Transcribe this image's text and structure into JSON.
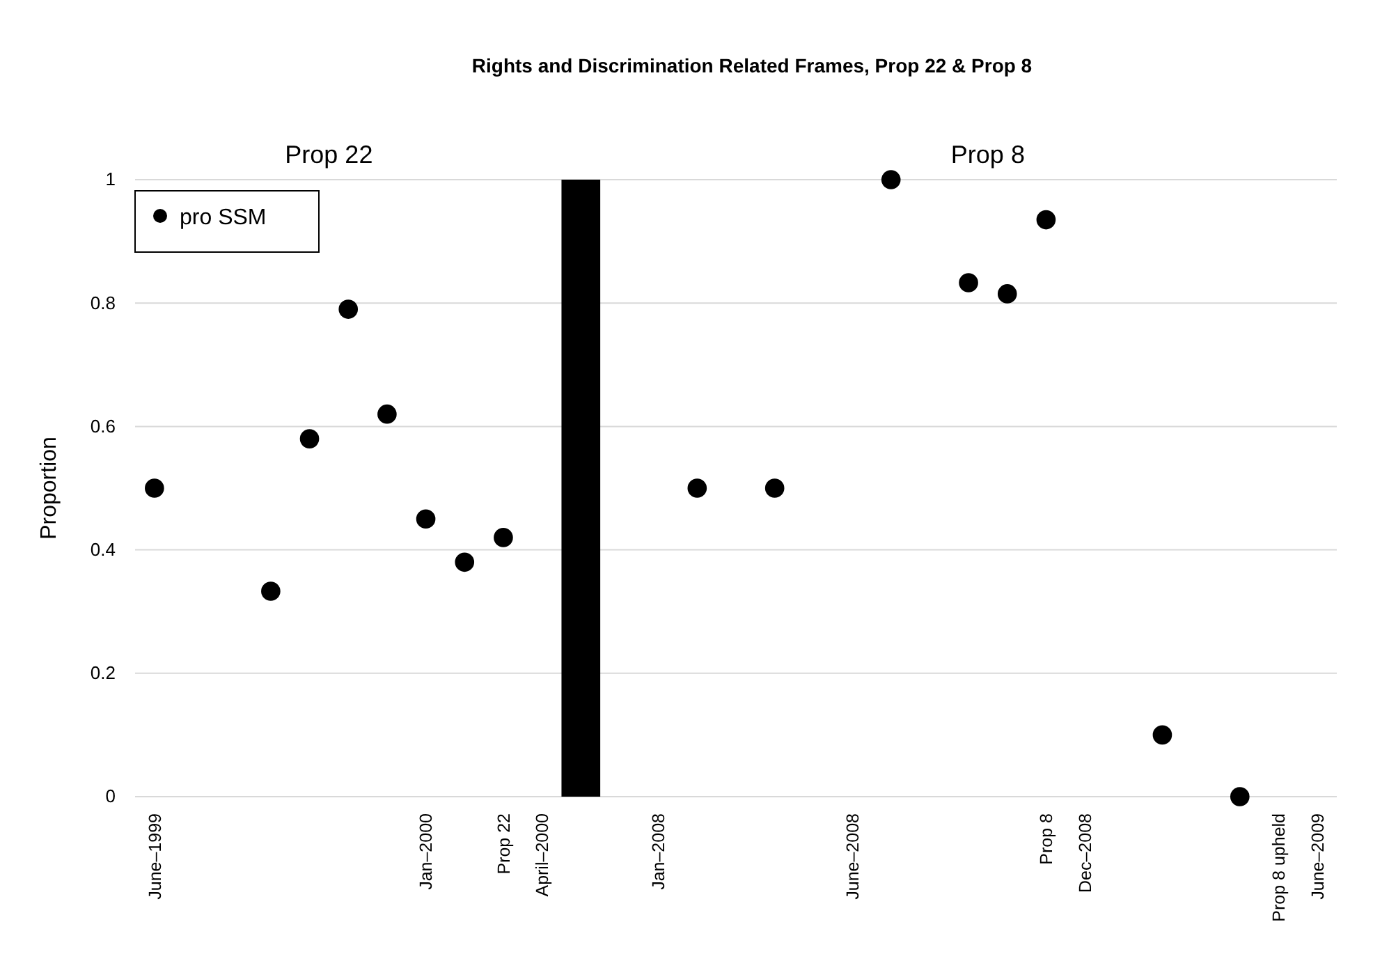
{
  "chart_data": {
    "type": "scatter",
    "title": "Rights and Discrimination Related Frames, Prop 22 & Prop 8",
    "ylabel": "Proportion",
    "annotations": [
      "Prop 22",
      "Prop 8"
    ],
    "categories": [
      "June–1999",
      null,
      null,
      null,
      null,
      null,
      null,
      "Jan–2000",
      null,
      "Prop 22",
      "April–2000",
      null,
      null,
      "Jan–2008",
      null,
      null,
      null,
      null,
      "June–2008",
      null,
      null,
      null,
      null,
      "Prop 8",
      "Dec–2008",
      null,
      null,
      null,
      null,
      "Prop 8 upheld",
      "June–2009"
    ],
    "series": [
      {
        "type": "bar",
        "color": "#000000",
        "values": [
          null,
          null,
          null,
          null,
          null,
          null,
          null,
          null,
          null,
          null,
          null,
          1,
          null,
          null,
          null,
          null,
          null,
          null,
          null,
          null,
          null,
          null,
          null,
          null,
          null,
          null,
          null,
          null,
          null,
          null,
          null
        ]
      },
      {
        "name": "pro SSM",
        "color": "#000000",
        "values": [
          0.5,
          null,
          null,
          0.333,
          0.58,
          0.79,
          0.62,
          0.45,
          0.38,
          0.42,
          null,
          null,
          null,
          null,
          0.5,
          null,
          0.5,
          null,
          null,
          1,
          null,
          0.833,
          0.815,
          0.935,
          null,
          null,
          0.1,
          null,
          0,
          null,
          null
        ]
      }
    ],
    "ylim": [
      0,
      1
    ],
    "yticks": [
      0,
      0.2,
      0.4,
      0.6,
      0.8,
      1
    ],
    "grid": "y",
    "legend": "top left",
    "marker": "circle"
  }
}
